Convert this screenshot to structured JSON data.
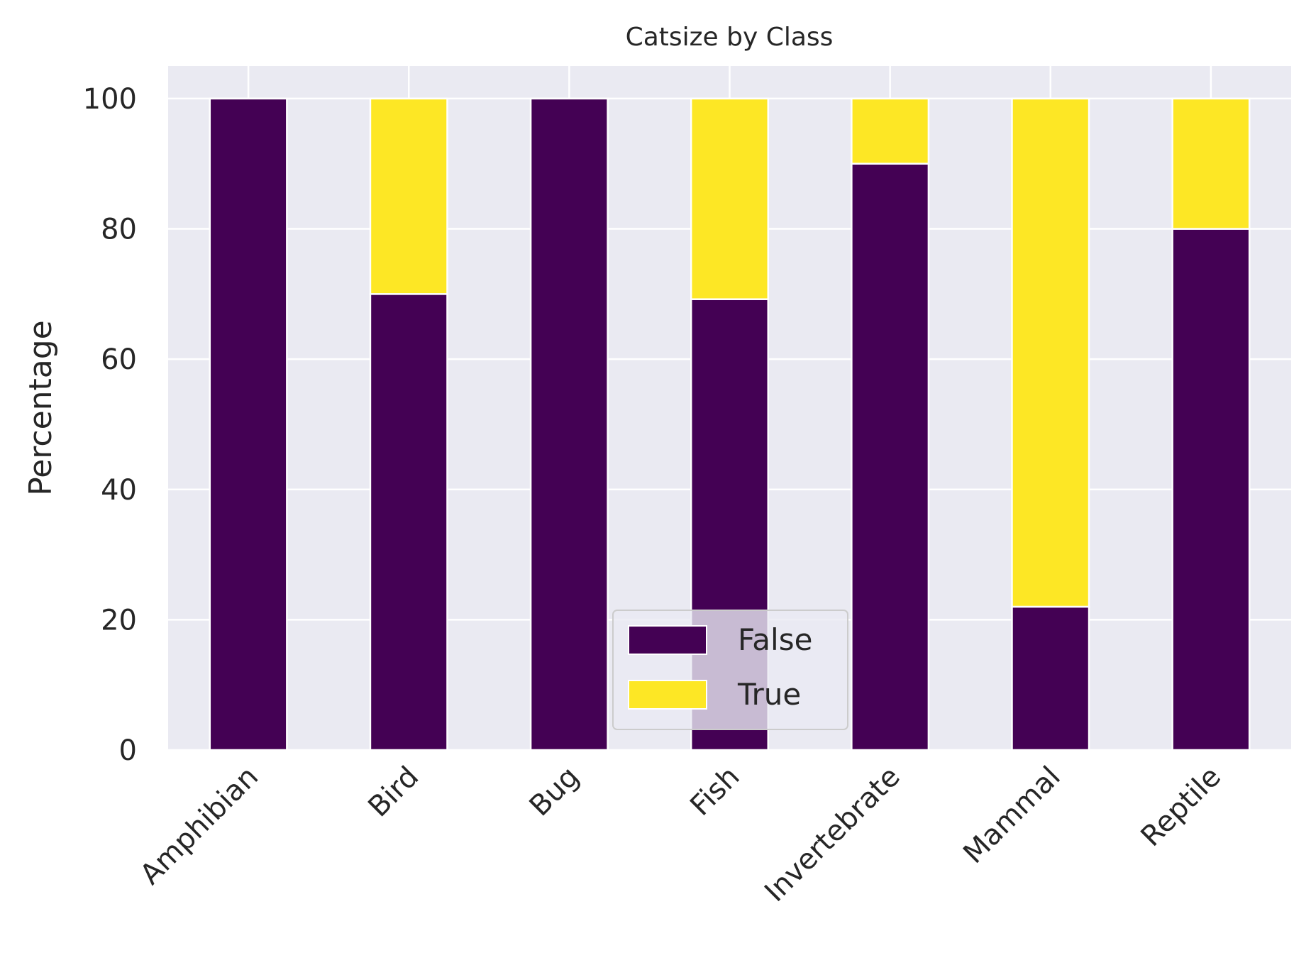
{
  "chart_data": {
    "type": "bar",
    "stacked": true,
    "title": "Catsize by Class",
    "xlabel": "",
    "ylabel": "Percentage",
    "categories": [
      "Amphibian",
      "Bird",
      "Bug",
      "Fish",
      "Invertebrate",
      "Mammal",
      "Reptile"
    ],
    "series": [
      {
        "name": "False",
        "color": "#440154",
        "values": [
          100,
          70,
          100,
          69.2,
          90,
          22,
          80
        ]
      },
      {
        "name": "True",
        "color": "#fde725",
        "values": [
          0,
          30,
          0,
          30.8,
          10,
          78,
          20
        ]
      }
    ],
    "ylim": [
      0,
      105
    ],
    "yticks": [
      0,
      20,
      40,
      60,
      80,
      100
    ],
    "grid": true,
    "legend": {
      "position": "lower-center"
    },
    "background": "#eaeaf2"
  }
}
